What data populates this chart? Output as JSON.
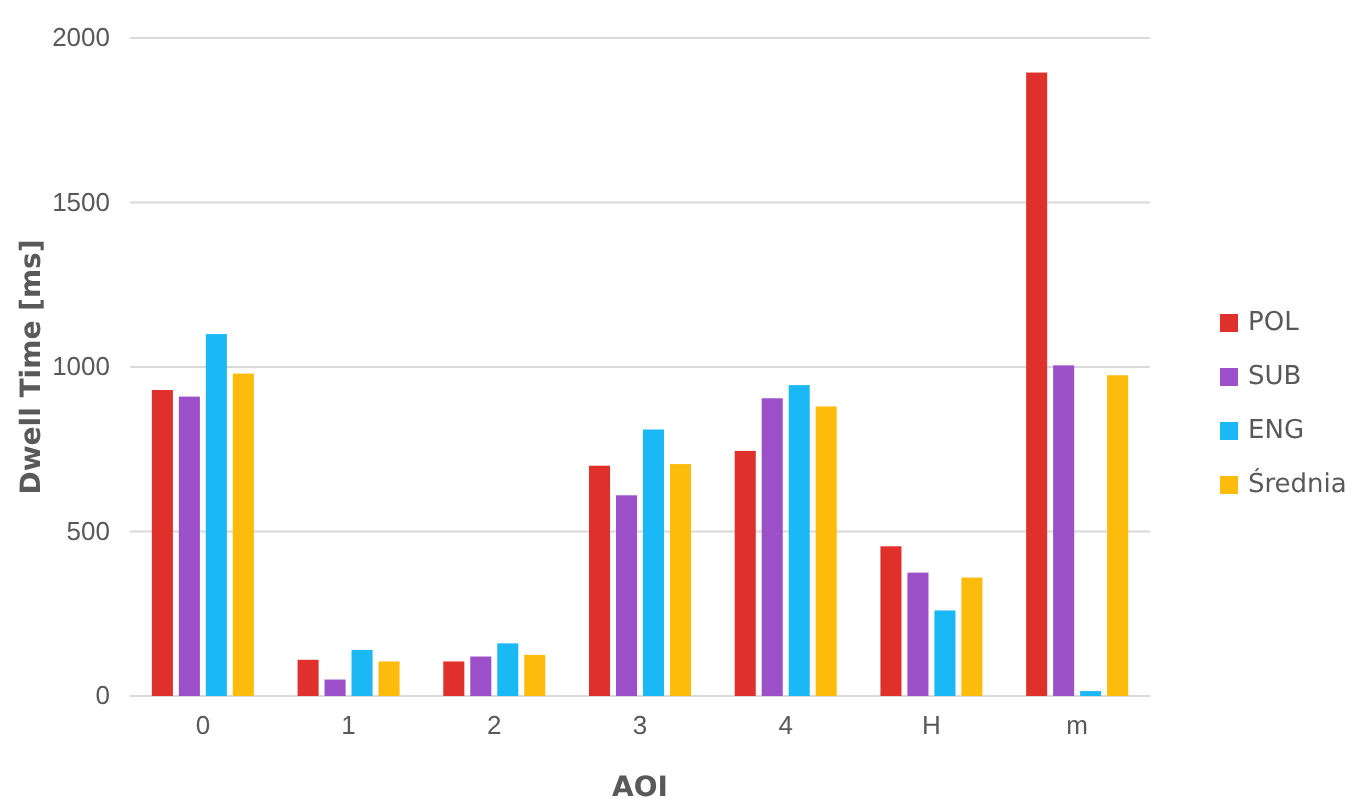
{
  "chart_data": {
    "type": "bar",
    "xlabel": "AOI",
    "ylabel": "Dwell Time [ms]",
    "categories": [
      "0",
      "1",
      "2",
      "3",
      "4",
      "H",
      "m"
    ],
    "series": [
      {
        "name": "POL",
        "color": "#e0302c",
        "values": [
          930,
          110,
          105,
          700,
          745,
          455,
          1895
        ]
      },
      {
        "name": "SUB",
        "color": "#9b4fc8",
        "values": [
          910,
          50,
          120,
          610,
          905,
          375,
          1005
        ]
      },
      {
        "name": "ENG",
        "color": "#1ab8f5",
        "values": [
          1100,
          140,
          160,
          810,
          945,
          260,
          15
        ]
      },
      {
        "name": "Średnia",
        "color": "#fdbb0c",
        "values": [
          980,
          105,
          125,
          705,
          880,
          360,
          975
        ]
      }
    ],
    "ylim": [
      0,
      2000
    ],
    "yticks": [
      0,
      500,
      1000,
      1500,
      2000
    ],
    "grid": "y",
    "legend": "right"
  }
}
